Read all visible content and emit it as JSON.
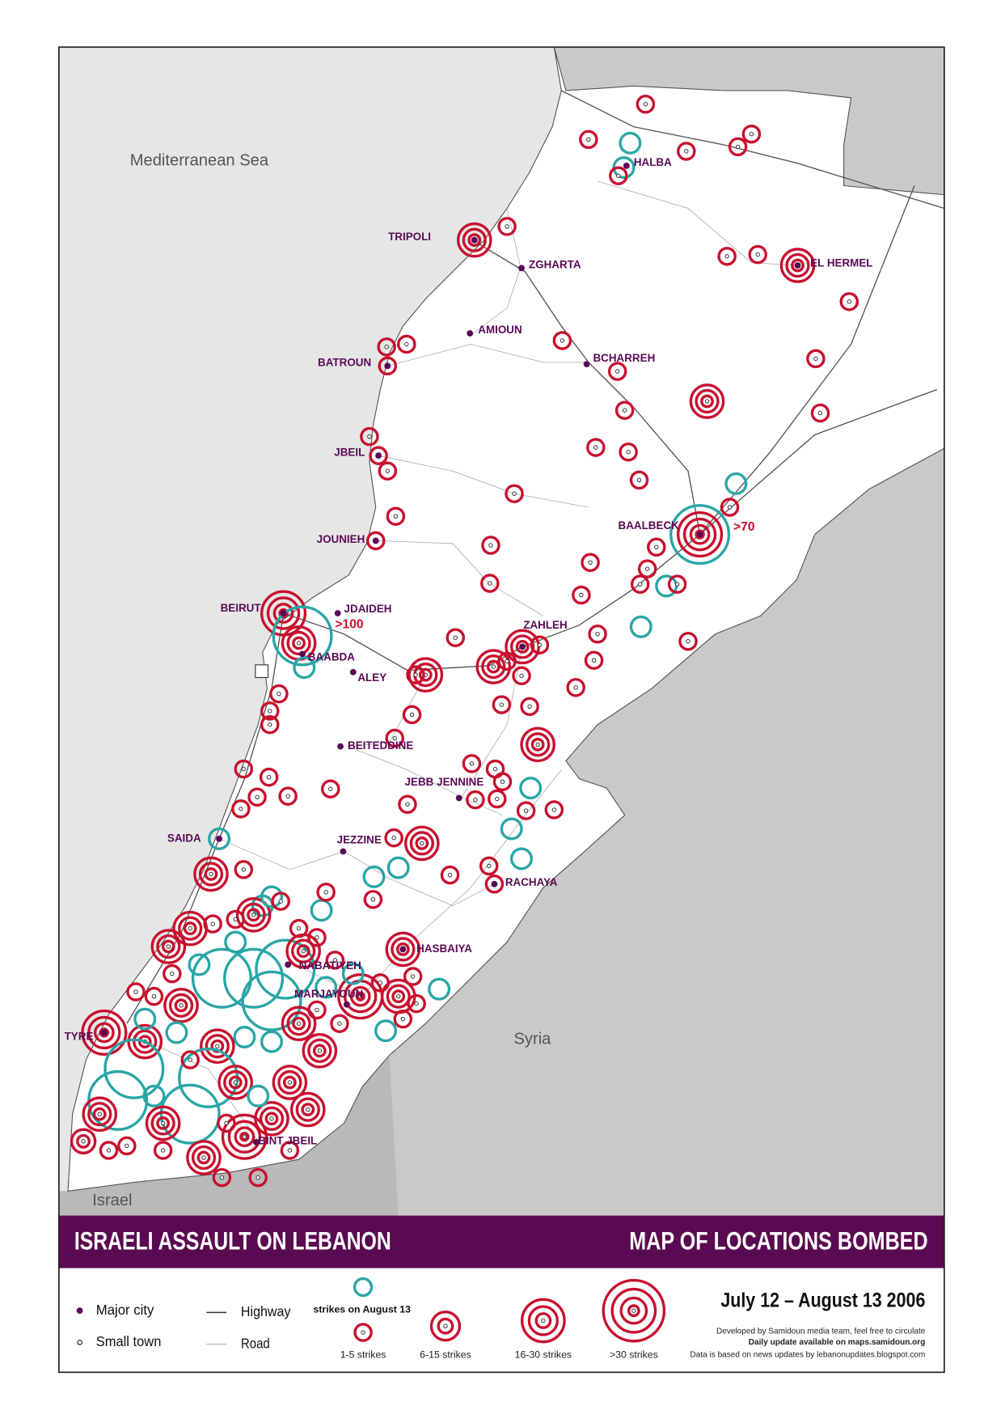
{
  "map": {
    "sea": "Mediterranean Sea",
    "syria": "Syria",
    "israel": "Israel"
  },
  "cities": [
    "TRIPOLI",
    "ZGHARTA",
    "AMIOUN",
    "BATROUN",
    "BCHARREH",
    "JBEIL",
    "JOUNIEH",
    "BAALBECK",
    "BEIRUT",
    "JDAIDEH",
    "BAABDA",
    "ALEY",
    "ZAHLEH",
    "BEITEDDINE",
    "JEBB JENNINE",
    "SAIDA",
    "JEZZINE",
    "RACHAYA",
    "HASBAIYA",
    "NABATIYEH",
    "MARJAYOUN",
    "TYRE",
    "BINT JBEIL",
    "HALBA",
    "EL HERMEL"
  ],
  "annotations": [
    ">70",
    ">100"
  ],
  "title_bar": {
    "left": "ISRAELI ASSAULT ON LEBANON",
    "right": "MAP OF LOCATIONS BOMBED"
  },
  "legend": {
    "major_city": "Major city",
    "small_town": "Small town",
    "highway": "Highway",
    "road": "Road",
    "august_13": "strikes on August 13",
    "levels": [
      "1-5 strikes",
      "6-15 strikes",
      "16-30 strikes",
      ">30 strikes"
    ]
  },
  "date": "July 12 – August 13 2006",
  "credits": [
    "Developed by Samidoun media team, feel free to circulate",
    "Daily update available on maps.samidoun.org",
    "Data is based on news updates by lebanonupdates.blogspot.com"
  ]
}
